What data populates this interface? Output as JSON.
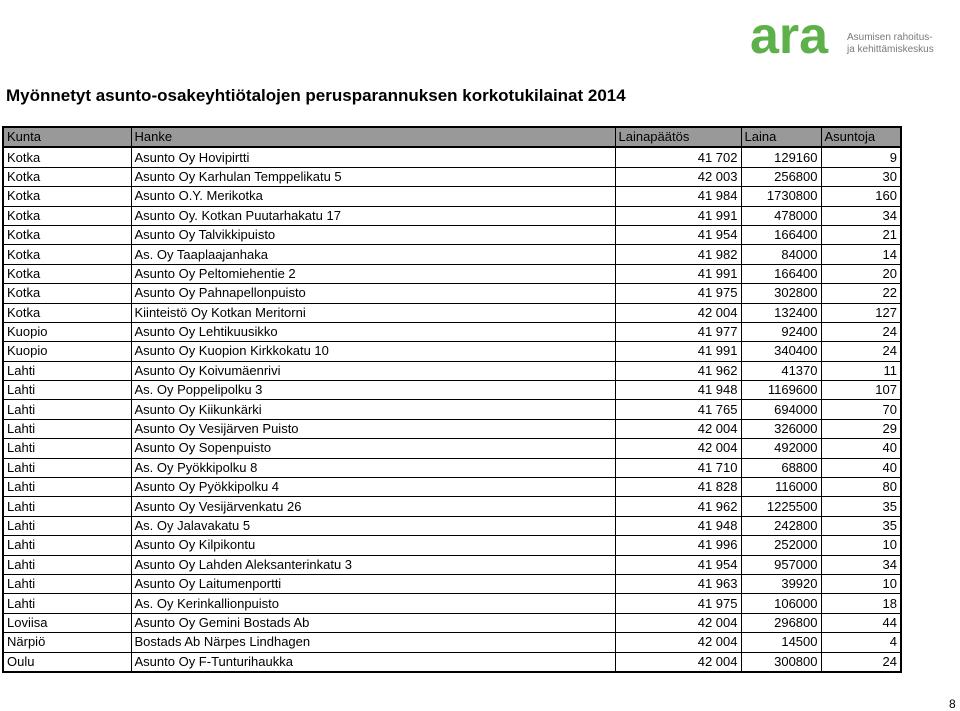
{
  "logo": {
    "wordmark": "ara",
    "tagline_line1": "Asumisen rahoitus-",
    "tagline_line2": "ja kehittämiskeskus",
    "color": "#5db04a"
  },
  "title": "Myönnetyt asunto-osakeyhtiötalojen perusparannuksen korkotukilainat  2014",
  "table": {
    "headers": [
      "Kunta",
      "Hanke",
      "Lainapäätös",
      "Laina",
      "Asuntoja"
    ],
    "rows": [
      [
        "Kotka",
        "Asunto Oy Hovipirtti",
        "41 702",
        "129160",
        "9"
      ],
      [
        "Kotka",
        "Asunto Oy Karhulan Temppelikatu 5",
        "42 003",
        "256800",
        "30"
      ],
      [
        "Kotka",
        "Asunto O.Y. Merikotka",
        "41 984",
        "1730800",
        "160"
      ],
      [
        "Kotka",
        "Asunto Oy. Kotkan Puutarhakatu 17",
        "41 991",
        "478000",
        "34"
      ],
      [
        "Kotka",
        "Asunto Oy Talvikkipuisto",
        "41 954",
        "166400",
        "21"
      ],
      [
        "Kotka",
        "As. Oy Taaplaajanhaka",
        "41 982",
        "84000",
        "14"
      ],
      [
        "Kotka",
        "Asunto Oy Peltomiehentie 2",
        "41 991",
        "166400",
        "20"
      ],
      [
        "Kotka",
        "Asunto Oy Pahnapellonpuisto",
        "41 975",
        "302800",
        "22"
      ],
      [
        "Kotka",
        "Kiinteistö Oy Kotkan Meritorni",
        "42 004",
        "132400",
        "127"
      ],
      [
        "Kuopio",
        "Asunto Oy Lehtikuusikko",
        "41 977",
        "92400",
        "24"
      ],
      [
        "Kuopio",
        "Asunto Oy Kuopion Kirkkokatu 10",
        "41 991",
        "340400",
        "24"
      ],
      [
        "Lahti",
        "Asunto Oy Koivumäenrivi",
        "41 962",
        "41370",
        "11"
      ],
      [
        "Lahti",
        "As. Oy Poppelipolku 3",
        "41 948",
        "1169600",
        "107"
      ],
      [
        "Lahti",
        "Asunto Oy Kiikunkärki",
        "41 765",
        "694000",
        "70"
      ],
      [
        "Lahti",
        "Asunto Oy Vesijärven Puisto",
        "42 004",
        "326000",
        "29"
      ],
      [
        "Lahti",
        "Asunto Oy Sopenpuisto",
        "42 004",
        "492000",
        "40"
      ],
      [
        "Lahti",
        "As. Oy Pyökkipolku 8",
        "41 710",
        "68800",
        "40"
      ],
      [
        "Lahti",
        "Asunto Oy Pyökkipolku 4",
        "41 828",
        "116000",
        "80"
      ],
      [
        "Lahti",
        "Asunto Oy Vesijärvenkatu 26",
        "41 962",
        "1225500",
        "35"
      ],
      [
        "Lahti",
        "As. Oy Jalavakatu 5",
        "41 948",
        "242800",
        "35"
      ],
      [
        "Lahti",
        "Asunto Oy Kilpikontu",
        "41 996",
        "252000",
        "10"
      ],
      [
        "Lahti",
        "Asunto Oy Lahden Aleksanterinkatu 3",
        "41 954",
        "957000",
        "34"
      ],
      [
        "Lahti",
        "Asunto Oy Laitumenportti",
        "41 963",
        "39920",
        "10"
      ],
      [
        "Lahti",
        "As. Oy Kerinkallionpuisto",
        "41 975",
        "106000",
        "18"
      ],
      [
        "Loviisa",
        "Asunto Oy Gemini Bostads Ab",
        "42 004",
        "296800",
        "44"
      ],
      [
        "Närpiö",
        "Bostads Ab Närpes Lindhagen",
        "42 004",
        "14500",
        "4"
      ],
      [
        "Oulu",
        "Asunto Oy F-Tunturihaukka",
        "42 004",
        "300800",
        "24"
      ]
    ]
  },
  "page_number": "8"
}
